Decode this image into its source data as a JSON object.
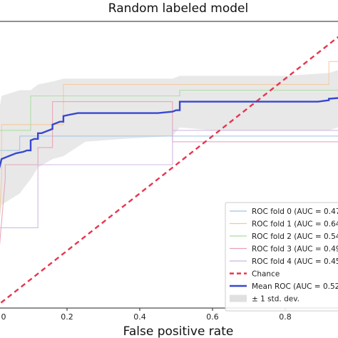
{
  "chart_data": {
    "type": "line",
    "title": "Random labeled model",
    "xlabel": "False positive rate",
    "ylabel": "",
    "xlim": [
      0,
      1
    ],
    "ylim": [
      0,
      1
    ],
    "xticks": [
      0,
      0.2,
      0.4,
      0.6,
      0.8
    ],
    "xtick_labels": [
      "0",
      "0.2",
      "0.4",
      "0.6",
      "0.8"
    ],
    "grid": false,
    "legend_position": "lower-right",
    "series": [
      {
        "name": "ROC fold 0 (AUC = 0.47",
        "color": "#9fc3e6",
        "x": [
          0,
          0.01,
          0.01,
          0.07,
          0.07,
          1.0
        ],
        "y": [
          0,
          0.4,
          0.55,
          0.55,
          0.6,
          0.6
        ]
      },
      {
        "name": "ROC fold 1 (AUC = 0.64",
        "color": "#f4c89a",
        "x": [
          0,
          0.02,
          0.02,
          0.19,
          0.19,
          0.92,
          0.92,
          1.0
        ],
        "y": [
          0,
          0.45,
          0.64,
          0.64,
          0.78,
          0.78,
          0.86,
          0.86
        ]
      },
      {
        "name": "ROC fold 2 (AUC = 0.54",
        "color": "#a8dca0",
        "x": [
          0,
          0.01,
          0.01,
          0.1,
          0.1,
          0.51,
          0.51,
          1.0
        ],
        "y": [
          0,
          0.35,
          0.62,
          0.62,
          0.74,
          0.74,
          0.76,
          0.76
        ]
      },
      {
        "name": "ROC fold 3 (AUC = 0.49",
        "color": "#e6a0b4",
        "x": [
          0,
          0.03,
          0.03,
          0.12,
          0.12,
          0.16,
          0.16,
          0.49,
          0.49,
          1.0
        ],
        "y": [
          0,
          0.45,
          0.5,
          0.5,
          0.56,
          0.56,
          0.72,
          0.72,
          0.58,
          0.58
        ]
      },
      {
        "name": "ROC fold 4 (AUC = 0.45",
        "color": "#cdb3e0",
        "x": [
          0,
          0.01,
          0.01,
          0.12,
          0.12,
          0.49,
          0.49,
          1.0
        ],
        "y": [
          0,
          0.25,
          0.28,
          0.28,
          0.5,
          0.5,
          0.62,
          0.62
        ]
      },
      {
        "name": "Chance",
        "color": "#e8344c",
        "dashed": true,
        "x": [
          0,
          1
        ],
        "y": [
          0,
          1
        ]
      },
      {
        "name": "Mean ROC (AUC = 0.52",
        "color": "#3848d0",
        "x": [
          0,
          0.003,
          0.008,
          0.02,
          0.04,
          0.06,
          0.08,
          0.09,
          0.1,
          0.1,
          0.11,
          0.12,
          0.12,
          0.13,
          0.14,
          0.16,
          0.16,
          0.17,
          0.18,
          0.19,
          0.19,
          0.21,
          0.23,
          0.26,
          0.3,
          0.35,
          0.4,
          0.45,
          0.49,
          0.5,
          0.51,
          0.51,
          0.54,
          0.6,
          0.7,
          0.8,
          0.89,
          0.92,
          0.92,
          0.97,
          0.97,
          1.0
        ],
        "y": [
          0.31,
          0.4,
          0.46,
          0.52,
          0.53,
          0.54,
          0.545,
          0.55,
          0.55,
          0.585,
          0.59,
          0.59,
          0.61,
          0.61,
          0.615,
          0.625,
          0.64,
          0.645,
          0.65,
          0.65,
          0.67,
          0.675,
          0.68,
          0.68,
          0.68,
          0.68,
          0.68,
          0.68,
          0.685,
          0.69,
          0.69,
          0.72,
          0.72,
          0.72,
          0.72,
          0.72,
          0.72,
          0.725,
          0.73,
          0.735,
          0.75,
          0.75
        ]
      }
    ],
    "std_band": {
      "name": "± 1 std. dev.",
      "color": "#cccccc",
      "x": [
        0,
        0.003,
        0.008,
        0.02,
        0.07,
        0.1,
        0.12,
        0.16,
        0.19,
        0.25,
        0.35,
        0.49,
        0.51,
        0.6,
        0.8,
        0.92,
        0.97,
        1.0
      ],
      "lower": [
        0.0,
        0.1,
        0.22,
        0.36,
        0.4,
        0.45,
        0.49,
        0.52,
        0.53,
        0.58,
        0.59,
        0.6,
        0.63,
        0.62,
        0.62,
        0.62,
        0.64,
        0.66
      ],
      "upper": [
        0.45,
        0.55,
        0.65,
        0.74,
        0.76,
        0.76,
        0.78,
        0.79,
        0.8,
        0.8,
        0.8,
        0.8,
        0.81,
        0.81,
        0.81,
        0.82,
        0.84,
        0.86
      ]
    },
    "legend": [
      {
        "label": "ROC fold 0 (AUC = 0.47",
        "style": "line",
        "color": "#9fc3e6"
      },
      {
        "label": "ROC fold 1 (AUC = 0.64",
        "style": "line",
        "color": "#f4c89a"
      },
      {
        "label": "ROC fold 2 (AUC = 0.54",
        "style": "line",
        "color": "#a8dca0"
      },
      {
        "label": "ROC fold 3 (AUC = 0.49",
        "style": "line",
        "color": "#e6a0b4"
      },
      {
        "label": "ROC fold 4 (AUC = 0.45",
        "style": "line",
        "color": "#cdb3e0"
      },
      {
        "label": "Chance",
        "style": "dashed",
        "color": "#e8344c"
      },
      {
        "label": "Mean ROC (AUC = 0.52",
        "style": "bold",
        "color": "#3848d0"
      },
      {
        "label": "± 1 std. dev.",
        "style": "patch",
        "color": "#cccccc"
      }
    ]
  }
}
